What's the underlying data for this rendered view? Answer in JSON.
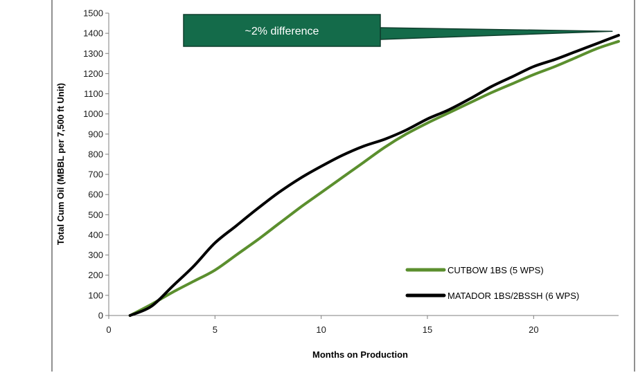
{
  "chart_data": {
    "type": "line",
    "title": "",
    "xlabel": "Months on Production",
    "ylabel": "Total Cum Oil (MBBL per 7,500 ft Unit)",
    "xlim": [
      0,
      24
    ],
    "ylim": [
      0,
      1500
    ],
    "x_ticks": [
      0,
      5,
      10,
      15,
      20
    ],
    "y_ticks": [
      0,
      100,
      200,
      300,
      400,
      500,
      600,
      700,
      800,
      900,
      1000,
      1100,
      1200,
      1300,
      1400,
      1500
    ],
    "grid": false,
    "legend_position": "bottom-right",
    "series": [
      {
        "name": "CUTBOW 1BS (5 WPS)",
        "color": "#5b8f2e",
        "x": [
          1,
          2,
          3,
          4,
          5,
          6,
          7,
          8,
          9,
          10,
          11,
          12,
          13,
          14,
          15,
          16,
          17,
          18,
          19,
          20,
          21,
          22,
          23,
          24
        ],
        "y": [
          0,
          55,
          115,
          170,
          225,
          300,
          375,
          455,
          535,
          610,
          685,
          760,
          835,
          900,
          955,
          1005,
          1055,
          1105,
          1150,
          1195,
          1235,
          1280,
          1325,
          1360
        ]
      },
      {
        "name": "MATADOR 1BS/2BSSH (6 WPS)",
        "color": "#000000",
        "x": [
          1,
          2,
          3,
          4,
          5,
          6,
          7,
          8,
          9,
          10,
          11,
          12,
          13,
          14,
          15,
          16,
          17,
          18,
          19,
          20,
          21,
          22,
          23,
          24
        ],
        "y": [
          0,
          45,
          145,
          245,
          360,
          445,
          530,
          610,
          680,
          740,
          795,
          840,
          875,
          920,
          975,
          1020,
          1075,
          1135,
          1185,
          1235,
          1270,
          1310,
          1350,
          1390
        ]
      }
    ],
    "annotations": [
      {
        "text": "~2% difference",
        "points_to": {
          "x": 23.7,
          "y": 1410
        }
      }
    ]
  },
  "colors": {
    "annotation_box": "#146b4a",
    "annotation_border": "#0f3d2c",
    "axis": "#7f7f7f"
  }
}
